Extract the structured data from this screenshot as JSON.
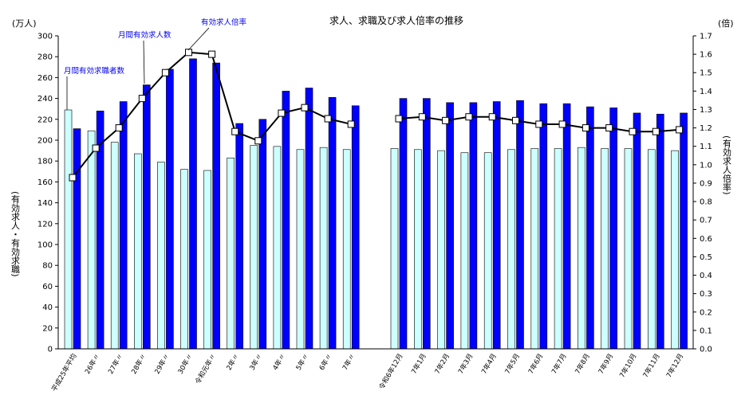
{
  "chart_data": {
    "type": "bar",
    "title": "求人、求職及び求人倍率の推移",
    "left_unit": "(万人)",
    "right_unit": "(倍)",
    "ylabel_left": "(有効求人・有効求職)",
    "ylabel_right": "(有効求人倍率)",
    "ylim_left": [
      0,
      300
    ],
    "ylim_right": [
      0.0,
      1.7
    ],
    "yticks_left": [
      "0",
      "20",
      "40",
      "60",
      "80",
      "100",
      "120",
      "140",
      "160",
      "180",
      "200",
      "220",
      "240",
      "260",
      "280",
      "300"
    ],
    "yticks_right": [
      "0.0",
      "0.1",
      "0.2",
      "0.3",
      "0.4",
      "0.5",
      "0.6",
      "0.7",
      "0.8",
      "0.9",
      "1.0",
      "1.1",
      "1.2",
      "1.3",
      "1.4",
      "1.5",
      "1.6",
      "1.7"
    ],
    "categories": [
      "平成25年平均",
      "26年〃",
      "27年〃",
      "28年〃",
      "29年〃",
      "30年〃",
      "令和元年〃",
      "2年〃",
      "3年〃",
      "4年〃",
      "5年〃",
      "6年〃",
      "7年〃",
      "令和6年12月",
      "7年1月",
      "7年2月",
      "7年3月",
      "7年4月",
      "7年5月",
      "7年6月",
      "7年7月",
      "7年8月",
      "7年9月",
      "7年10月",
      "7年11月",
      "7年12月"
    ],
    "series": [
      {
        "name": "月間有効求職者数",
        "kind": "bar",
        "axis": "left",
        "color": "#ccffff",
        "values": [
          229,
          209,
          198,
          187,
          179,
          172,
          171,
          183,
          195,
          194,
          191,
          193,
          191,
          192,
          191,
          190,
          188,
          188,
          191,
          192,
          192,
          193,
          192,
          192,
          191,
          190
        ]
      },
      {
        "name": "月間有効求人数",
        "kind": "bar",
        "axis": "left",
        "color": "#0000ff",
        "values": [
          211,
          228,
          237,
          253,
          268,
          278,
          274,
          216,
          220,
          247,
          250,
          241,
          233,
          240,
          240,
          236,
          236,
          237,
          238,
          235,
          235,
          232,
          231,
          226,
          225,
          226
        ]
      },
      {
        "name": "有効求人倍率",
        "kind": "line",
        "axis": "right",
        "color": "#000000",
        "values": [
          0.93,
          1.09,
          1.2,
          1.36,
          1.5,
          1.61,
          1.6,
          1.18,
          1.13,
          1.28,
          1.31,
          1.25,
          1.22,
          1.25,
          1.26,
          1.24,
          1.26,
          1.26,
          1.24,
          1.22,
          1.22,
          1.2,
          1.2,
          1.18,
          1.18,
          1.19
        ]
      }
    ],
    "grid": false
  }
}
